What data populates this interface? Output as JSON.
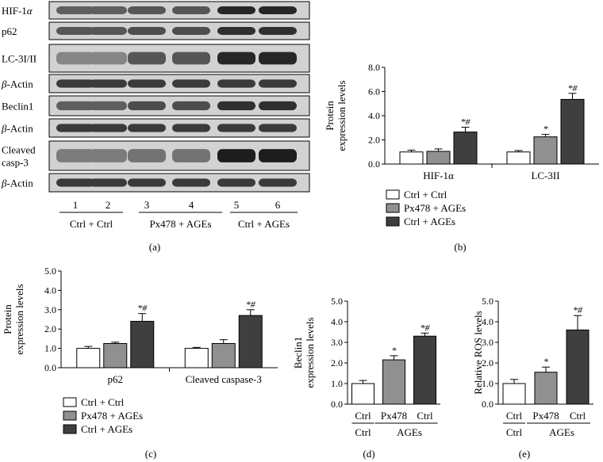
{
  "panel_labels": [
    "(a)",
    "(b)",
    "(c)",
    "(d)",
    "(e)"
  ],
  "colors": {
    "ctrl": "#ffffff",
    "px478": "#909090",
    "ages": "#3f3f3f",
    "blot_band": "#252525",
    "blot_bg": "#d2d2d2"
  },
  "blot": {
    "rows": [
      {
        "label": "HIF-1α",
        "intensity": [
          0.55,
          0.55,
          0.6,
          0.6,
          0.85,
          0.85
        ]
      },
      {
        "label": "p62",
        "intensity": [
          0.6,
          0.6,
          0.65,
          0.65,
          0.8,
          0.8
        ]
      },
      {
        "label": "LC-3I/II",
        "intensity": [
          0.35,
          0.35,
          0.6,
          0.6,
          0.85,
          0.85
        ]
      },
      {
        "label": "β-Actin",
        "intensity": [
          0.75,
          0.75,
          0.75,
          0.75,
          0.75,
          0.75
        ]
      },
      {
        "label": "Beclin1",
        "intensity": [
          0.55,
          0.55,
          0.65,
          0.65,
          0.8,
          0.8
        ]
      },
      {
        "label": "β-Actin",
        "intensity": [
          0.75,
          0.75,
          0.75,
          0.75,
          0.75,
          0.75
        ]
      },
      {
        "label": "Cleaved casp-3",
        "intensity": [
          0.4,
          0.4,
          0.45,
          0.45,
          0.9,
          0.9
        ]
      },
      {
        "label": "β-Actin",
        "intensity": [
          0.75,
          0.75,
          0.75,
          0.75,
          0.75,
          0.75
        ]
      }
    ],
    "lanes": [
      "1",
      "2",
      "3",
      "4",
      "5",
      "6"
    ],
    "groups": [
      "Ctrl + Ctrl",
      "Px478 + AGEs",
      "Ctrl + AGEs"
    ]
  },
  "chart_data": [
    {
      "panel": "(b)",
      "type": "bar",
      "ylabel": "Protein expression levels",
      "ylim": [
        0,
        8
      ],
      "yticks": [
        "0.0",
        "2.0",
        "4.0",
        "6.0",
        "8.0"
      ],
      "categories": [
        "HIF-1α",
        "LC-3II"
      ],
      "series": [
        {
          "name": "Ctrl + Ctrl",
          "values": [
            1.0,
            1.0
          ],
          "errors": [
            0.15,
            0.12
          ]
        },
        {
          "name": "Px478 + AGEs",
          "values": [
            1.05,
            2.25
          ],
          "errors": [
            0.2,
            0.2
          ]
        },
        {
          "name": "Ctrl + AGEs",
          "values": [
            2.65,
            5.35
          ],
          "errors": [
            0.4,
            0.5
          ]
        }
      ],
      "annotations": [
        [
          "",
          ""
        ],
        [
          "",
          "*"
        ],
        [
          "*#",
          "*#"
        ]
      ],
      "legend": "bottom"
    },
    {
      "panel": "(c)",
      "type": "bar",
      "ylabel": "Protein expression levels",
      "ylim": [
        0,
        5
      ],
      "yticks": [
        "0.0",
        "1.0",
        "2.0",
        "3.0",
        "4.0",
        "5.0"
      ],
      "categories": [
        "p62",
        "Cleaved caspase-3"
      ],
      "series": [
        {
          "name": "Ctrl + Ctrl",
          "values": [
            1.0,
            1.0
          ],
          "errors": [
            0.1,
            0.05
          ]
        },
        {
          "name": "Px478 + AGEs",
          "values": [
            1.25,
            1.25
          ],
          "errors": [
            0.07,
            0.2
          ]
        },
        {
          "name": "Ctrl + AGEs",
          "values": [
            2.4,
            2.7
          ],
          "errors": [
            0.4,
            0.3
          ]
        }
      ],
      "annotations": [
        [
          "",
          ""
        ],
        [
          "",
          ""
        ],
        [
          "*#",
          "*#"
        ]
      ],
      "legend": "bottom"
    },
    {
      "panel": "(d)",
      "type": "bar",
      "ylabel": "Beclin1 expression levels",
      "ylim": [
        0,
        5
      ],
      "yticks": [
        "0.0",
        "1.0",
        "2.0",
        "3.0",
        "4.0",
        "5.0"
      ],
      "categories": [
        "Ctrl",
        "Px478",
        "Ctrl"
      ],
      "category_sublabels": [
        "Ctrl",
        "AGEs"
      ],
      "values": [
        1.0,
        2.15,
        3.3
      ],
      "errors": [
        0.15,
        0.2,
        0.15
      ],
      "annotations": [
        "",
        "*",
        "*#"
      ]
    },
    {
      "panel": "(e)",
      "type": "bar",
      "ylabel": "Relative ROS levels",
      "ylim": [
        0,
        5
      ],
      "yticks": [
        "0.0",
        "1.0",
        "2.0",
        "3.0",
        "4.0",
        "5.0"
      ],
      "categories": [
        "Ctrl",
        "Px478",
        "Ctrl"
      ],
      "category_sublabels": [
        "Ctrl",
        "AGEs"
      ],
      "values": [
        1.0,
        1.55,
        3.6
      ],
      "errors": [
        0.2,
        0.25,
        0.7
      ],
      "annotations": [
        "",
        "*",
        "*#"
      ]
    }
  ]
}
